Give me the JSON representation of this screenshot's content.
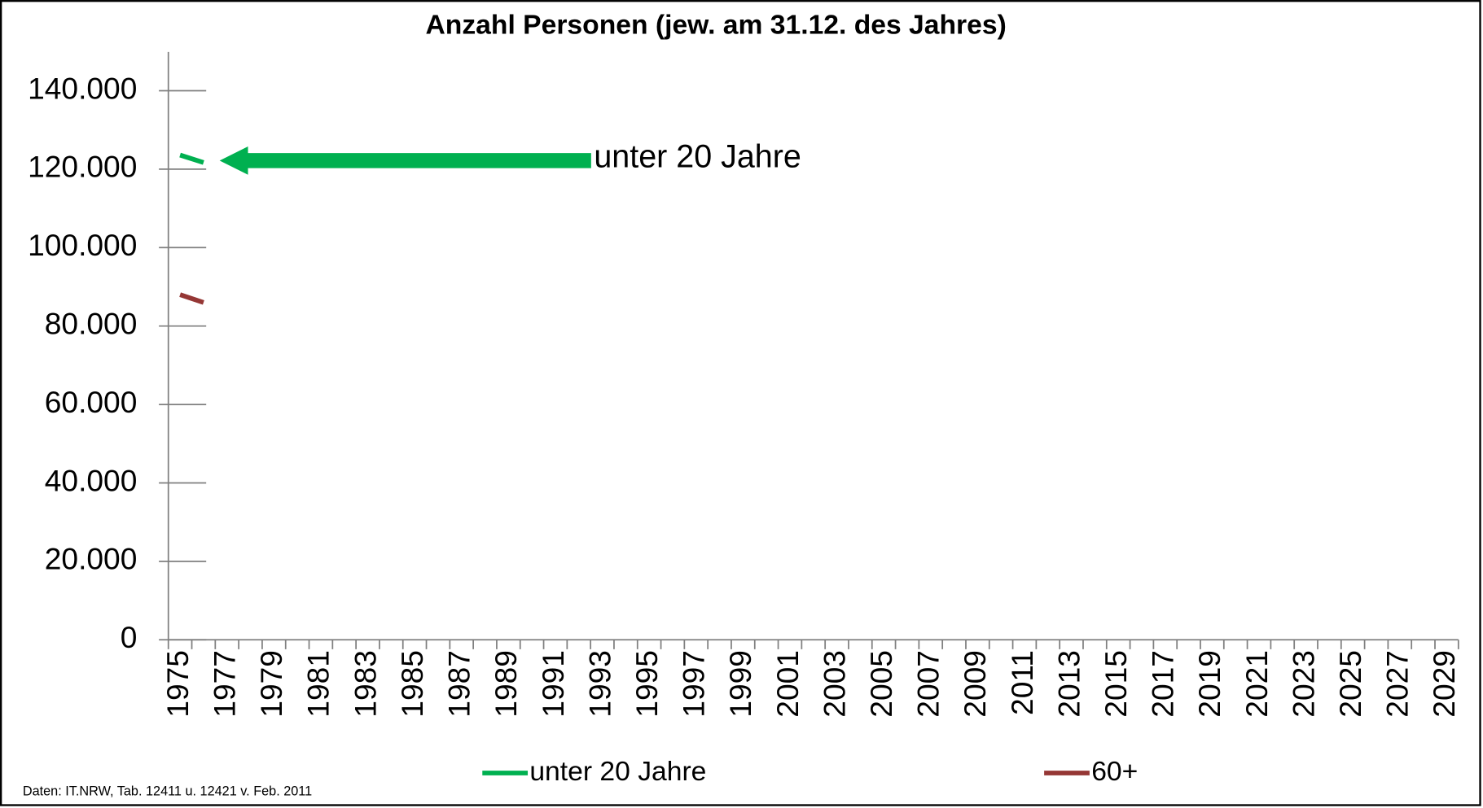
{
  "chart_data": {
    "type": "line",
    "title": "Anzahl Personen (jew. am 31.12. des Jahres)",
    "categories": [
      "1975",
      null,
      "1977",
      null,
      "1979",
      null,
      "1981",
      null,
      "1983",
      null,
      "1985",
      null,
      "1987",
      null,
      "1989",
      null,
      "1991",
      null,
      "1993",
      null,
      "1995",
      null,
      "1997",
      null,
      "1999",
      null,
      "2001",
      null,
      "2003",
      null,
      "2005",
      null,
      "2007",
      null,
      "2009",
      null,
      "2011",
      null,
      "2013",
      null,
      "2015",
      null,
      "2017",
      null,
      "2019",
      null,
      "2021",
      null,
      "2023",
      null,
      "2025",
      null,
      "2027",
      null,
      "2029"
    ],
    "series": [
      {
        "name": "unter 20 Jahre",
        "color": "#00b050",
        "values": [
          123600,
          121700,
          null,
          null,
          null,
          null,
          null,
          null,
          null,
          null,
          null,
          null,
          null,
          null,
          null,
          null,
          null,
          null,
          null,
          null,
          null,
          null,
          null,
          null,
          null,
          null,
          null,
          null,
          null,
          null,
          null,
          null,
          null,
          null,
          null,
          null,
          null,
          null,
          null,
          null,
          null,
          null,
          null,
          null,
          null,
          null,
          null,
          null,
          null,
          null,
          null,
          null,
          null,
          null,
          null
        ]
      },
      {
        "name": "60+",
        "color": "#953735",
        "values": [
          88000,
          86000,
          null,
          null,
          null,
          null,
          null,
          null,
          null,
          null,
          null,
          null,
          null,
          null,
          null,
          null,
          null,
          null,
          null,
          null,
          null,
          null,
          null,
          null,
          null,
          null,
          null,
          null,
          null,
          null,
          null,
          null,
          null,
          null,
          null,
          null,
          null,
          null,
          null,
          null,
          null,
          null,
          null,
          null,
          null,
          null,
          null,
          null,
          null,
          null,
          null,
          null,
          null,
          null,
          null
        ]
      }
    ],
    "ylim": [
      0,
      140000
    ],
    "yticks": [
      0,
      {
        "value": 20000,
        "label": "20.000"
      },
      {
        "value": 40000,
        "label": "40.000"
      },
      {
        "value": 60000,
        "label": "60.000"
      },
      {
        "value": 80000,
        "label": "80.000"
      },
      {
        "value": 100000,
        "label": "100.000"
      },
      {
        "value": 120000,
        "label": "120.000"
      },
      {
        "value": 140000,
        "label": "140.000"
      }
    ],
    "annotations": [
      {
        "text": "unter 20 Jahre",
        "series": 0,
        "index": 1
      }
    ],
    "source": "Daten: IT.NRW, Tab. 12411 u. 12421  v. Feb. 2011",
    "legend": "bottom"
  }
}
